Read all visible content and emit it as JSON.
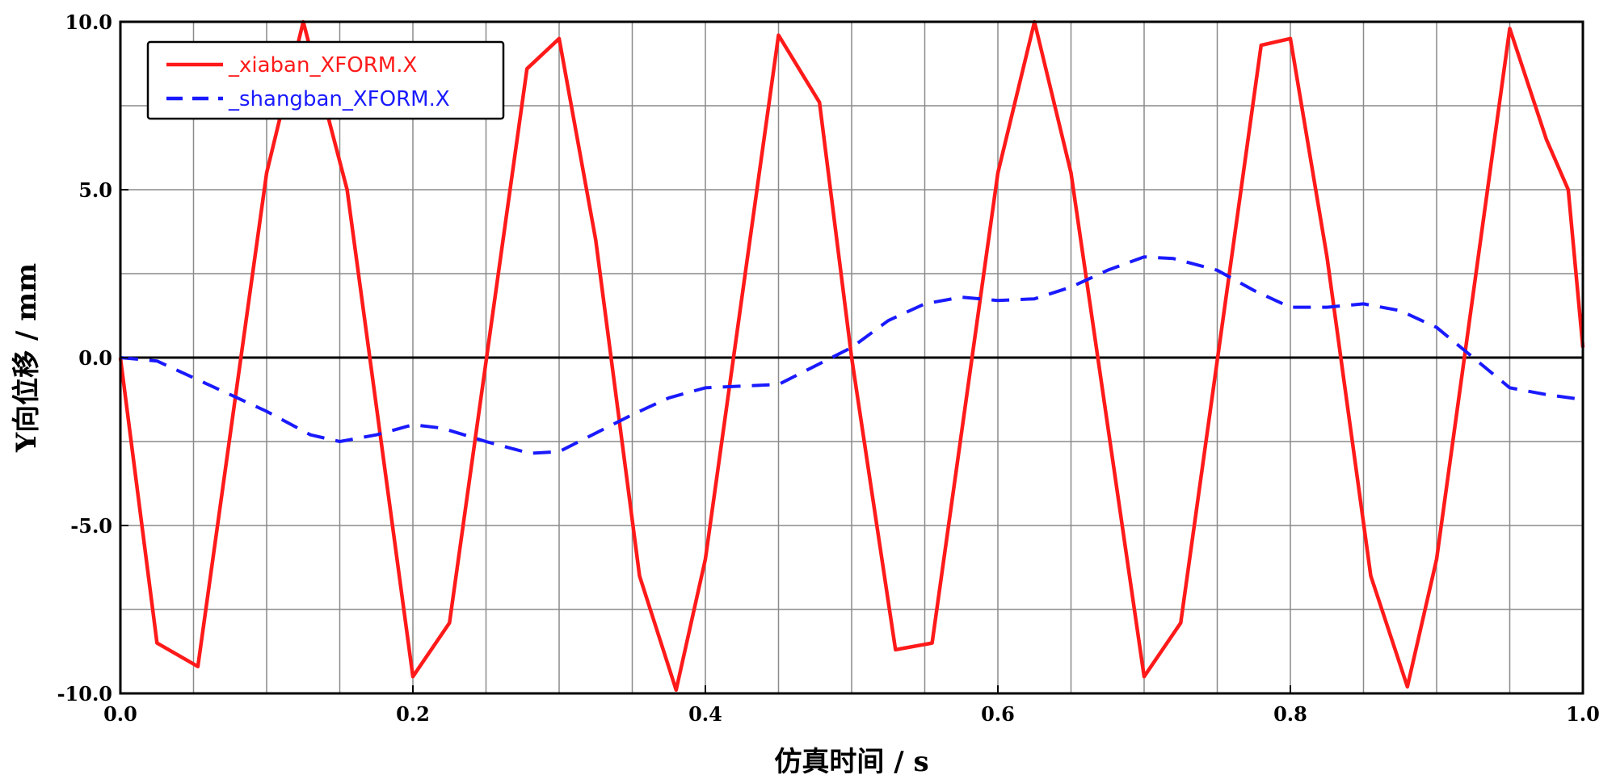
{
  "chart_data": {
    "type": "line",
    "xlabel": "仿真时间 / s",
    "ylabel": "Y向位移 / mm",
    "xlim": [
      0,
      1.0
    ],
    "ylim": [
      -10,
      10
    ],
    "x_tick_labels": [
      "0.0",
      "0.2",
      "0.4",
      "0.6",
      "0.8",
      "1.0"
    ],
    "y_tick_labels": [
      "10.0",
      "5.0",
      "0.0",
      "-5.0",
      "-10.0"
    ],
    "x_ticks": [
      0,
      0.2,
      0.4,
      0.6,
      0.8,
      1.0
    ],
    "y_ticks": [
      10,
      5,
      0,
      -5,
      -10
    ],
    "grid": true,
    "legend_position": "top-left",
    "series": [
      {
        "name": "_xiaban_XFORM.X",
        "color": "#ff1a1a",
        "style": "solid",
        "points": [
          [
            0.0,
            0.0
          ],
          [
            0.025,
            -8.5
          ],
          [
            0.053,
            -9.2
          ],
          [
            0.1,
            5.5
          ],
          [
            0.125,
            10.0
          ],
          [
            0.155,
            5.0
          ],
          [
            0.2,
            -9.5
          ],
          [
            0.225,
            -7.9
          ],
          [
            0.278,
            8.6
          ],
          [
            0.3,
            9.5
          ],
          [
            0.325,
            3.5
          ],
          [
            0.355,
            -6.5
          ],
          [
            0.38,
            -9.9
          ],
          [
            0.4,
            -6.0
          ],
          [
            0.45,
            9.6
          ],
          [
            0.478,
            7.6
          ],
          [
            0.5,
            0.0
          ],
          [
            0.53,
            -8.7
          ],
          [
            0.555,
            -8.5
          ],
          [
            0.6,
            5.5
          ],
          [
            0.625,
            10.0
          ],
          [
            0.65,
            5.5
          ],
          [
            0.7,
            -9.5
          ],
          [
            0.725,
            -7.9
          ],
          [
            0.78,
            9.3
          ],
          [
            0.8,
            9.5
          ],
          [
            0.825,
            3.0
          ],
          [
            0.855,
            -6.5
          ],
          [
            0.88,
            -9.8
          ],
          [
            0.9,
            -6.0
          ],
          [
            0.95,
            9.8
          ],
          [
            0.975,
            6.5
          ],
          [
            0.99,
            5.0
          ],
          [
            1.0,
            0.3
          ]
        ]
      },
      {
        "name": "_shangban_XFORM.X",
        "color": "#1a1aff",
        "style": "dashed",
        "points": [
          [
            0.0,
            0.0
          ],
          [
            0.025,
            -0.1
          ],
          [
            0.05,
            -0.6
          ],
          [
            0.1,
            -1.6
          ],
          [
            0.13,
            -2.3
          ],
          [
            0.15,
            -2.5
          ],
          [
            0.175,
            -2.3
          ],
          [
            0.2,
            -2.0
          ],
          [
            0.22,
            -2.1
          ],
          [
            0.25,
            -2.5
          ],
          [
            0.28,
            -2.85
          ],
          [
            0.3,
            -2.8
          ],
          [
            0.35,
            -1.7
          ],
          [
            0.375,
            -1.2
          ],
          [
            0.4,
            -0.9
          ],
          [
            0.45,
            -0.8
          ],
          [
            0.5,
            0.3
          ],
          [
            0.525,
            1.1
          ],
          [
            0.55,
            1.6
          ],
          [
            0.575,
            1.8
          ],
          [
            0.6,
            1.7
          ],
          [
            0.625,
            1.75
          ],
          [
            0.65,
            2.1
          ],
          [
            0.675,
            2.6
          ],
          [
            0.7,
            3.0
          ],
          [
            0.72,
            2.95
          ],
          [
            0.75,
            2.6
          ],
          [
            0.775,
            2.0
          ],
          [
            0.8,
            1.5
          ],
          [
            0.825,
            1.5
          ],
          [
            0.85,
            1.6
          ],
          [
            0.875,
            1.4
          ],
          [
            0.9,
            0.9
          ],
          [
            0.925,
            0.0
          ],
          [
            0.95,
            -0.9
          ],
          [
            0.975,
            -1.1
          ],
          [
            1.0,
            -1.25
          ]
        ]
      }
    ]
  }
}
